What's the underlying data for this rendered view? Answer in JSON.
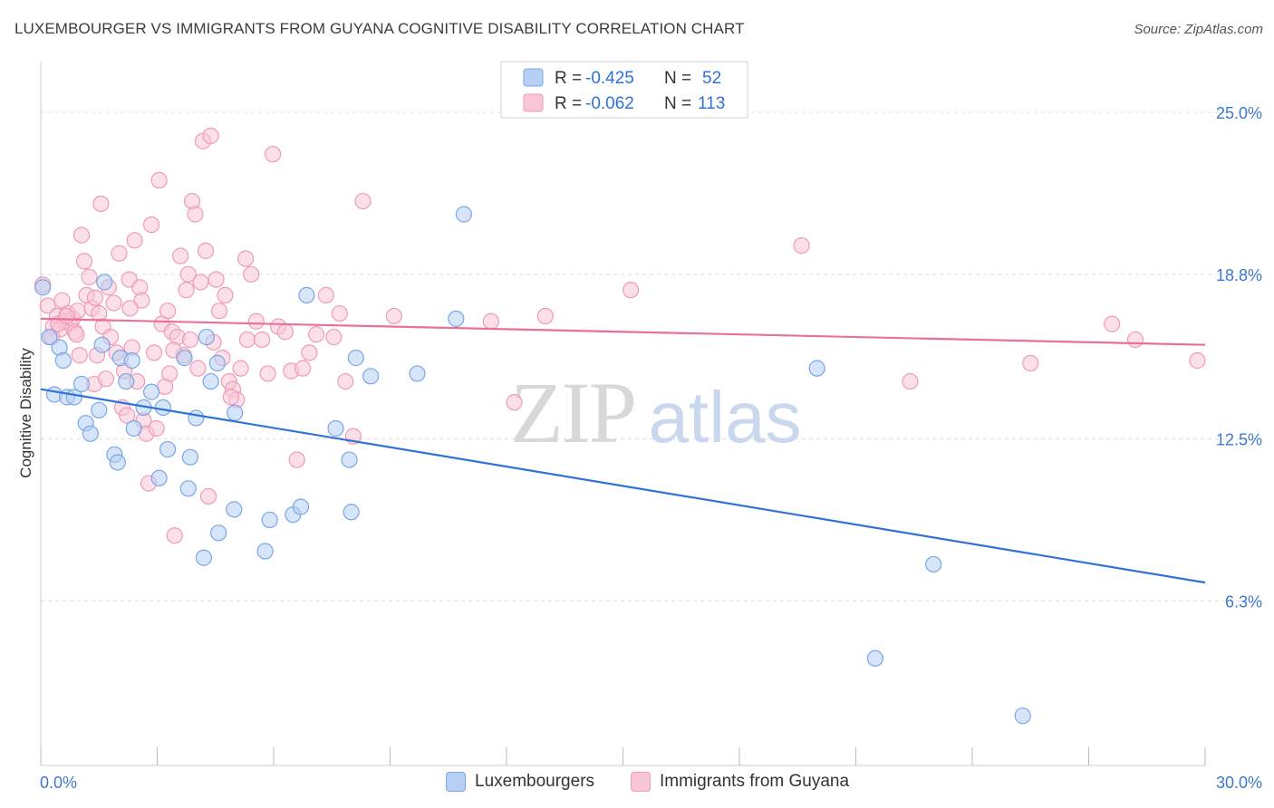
{
  "title": "LUXEMBOURGER VS IMMIGRANTS FROM GUYANA COGNITIVE DISABILITY CORRELATION CHART",
  "source": "Source: ZipAtlas.com",
  "watermark": {
    "zip": "ZIP",
    "atlas": "atlas"
  },
  "colors": {
    "blue": "#2f72d6",
    "blue_fill": "#b7cff4",
    "blue_stroke": "#7aa6e6",
    "pink": "#e8709a",
    "pink_fill": "#f9c6d7",
    "pink_stroke": "#ef9ab8",
    "axis_text": "#3d79d0",
    "grid": "#dddddd"
  },
  "legend_top": [
    {
      "r_label": "R =",
      "r_value": "-0.425",
      "n_label": "N =",
      "n_value": "52"
    },
    {
      "r_label": "R =",
      "r_value": "-0.062",
      "n_label": "N =",
      "n_value": "113"
    }
  ],
  "legend_bottom": [
    "Luxembourgers",
    "Immigrants from Guyana"
  ],
  "chart_data": {
    "type": "scatter",
    "title": "LUXEMBOURGER VS IMMIGRANTS FROM GUYANA COGNITIVE DISABILITY CORRELATION CHART",
    "xlabel": "",
    "ylabel": "Cognitive Disability",
    "xlim": [
      0,
      30
    ],
    "ylim": [
      0,
      26.7
    ],
    "x_tick_labels": [
      "0.0%",
      "30.0%"
    ],
    "y_ticks": [
      6.3,
      12.5,
      18.8,
      25.0
    ],
    "y_tick_labels": [
      "6.3%",
      "12.5%",
      "18.8%",
      "25.0%"
    ],
    "grid": true,
    "legend_position": "top-center",
    "series": [
      {
        "name": "Luxembourgers",
        "r": -0.425,
        "n": 52,
        "trend": {
          "x": [
            0,
            30
          ],
          "y": [
            14.4,
            7.0
          ]
        },
        "points": [
          [
            0.05,
            18.3
          ],
          [
            0.22,
            16.4
          ],
          [
            0.35,
            14.2
          ],
          [
            0.48,
            16.0
          ],
          [
            0.58,
            15.5
          ],
          [
            0.68,
            14.1
          ],
          [
            0.86,
            14.1
          ],
          [
            1.05,
            14.6
          ],
          [
            1.16,
            13.1
          ],
          [
            1.28,
            12.7
          ],
          [
            1.5,
            13.6
          ],
          [
            1.58,
            16.1
          ],
          [
            1.64,
            18.5
          ],
          [
            1.9,
            11.9
          ],
          [
            1.98,
            11.6
          ],
          [
            2.05,
            15.6
          ],
          [
            2.2,
            14.7
          ],
          [
            2.35,
            15.5
          ],
          [
            2.4,
            12.9
          ],
          [
            2.65,
            13.7
          ],
          [
            2.85,
            14.3
          ],
          [
            3.05,
            11.0
          ],
          [
            3.15,
            13.7
          ],
          [
            3.27,
            12.1
          ],
          [
            3.7,
            15.6
          ],
          [
            3.8,
            10.6
          ],
          [
            3.85,
            11.8
          ],
          [
            4.0,
            13.3
          ],
          [
            4.2,
            7.95
          ],
          [
            4.27,
            16.4
          ],
          [
            4.38,
            14.7
          ],
          [
            4.55,
            15.4
          ],
          [
            4.58,
            8.9
          ],
          [
            4.98,
            9.8
          ],
          [
            5.0,
            13.5
          ],
          [
            5.78,
            8.2
          ],
          [
            5.9,
            9.4
          ],
          [
            6.5,
            9.6
          ],
          [
            6.7,
            9.9
          ],
          [
            6.85,
            18.0
          ],
          [
            7.6,
            12.9
          ],
          [
            7.95,
            11.7
          ],
          [
            8.0,
            9.7
          ],
          [
            8.12,
            15.6
          ],
          [
            8.5,
            14.9
          ],
          [
            9.7,
            15.0
          ],
          [
            10.7,
            17.1
          ],
          [
            10.9,
            21.1
          ],
          [
            20.0,
            15.2
          ],
          [
            21.5,
            4.1
          ],
          [
            23.0,
            7.7
          ],
          [
            25.3,
            1.9
          ]
        ]
      },
      {
        "name": "Immigrants from Guyana",
        "r": -0.062,
        "n": 113,
        "trend": {
          "x": [
            0,
            30
          ],
          "y": [
            17.1,
            16.1
          ]
        },
        "points": [
          [
            0.05,
            18.4
          ],
          [
            0.18,
            17.6
          ],
          [
            0.32,
            16.8
          ],
          [
            0.42,
            17.2
          ],
          [
            0.5,
            16.7
          ],
          [
            0.55,
            17.8
          ],
          [
            0.62,
            17.0
          ],
          [
            0.7,
            17.3
          ],
          [
            0.75,
            16.9
          ],
          [
            0.82,
            17.1
          ],
          [
            0.88,
            16.6
          ],
          [
            0.95,
            17.4
          ],
          [
            1.0,
            15.7
          ],
          [
            1.05,
            20.3
          ],
          [
            1.12,
            19.3
          ],
          [
            1.18,
            18.0
          ],
          [
            1.25,
            18.7
          ],
          [
            1.32,
            17.5
          ],
          [
            1.38,
            14.6
          ],
          [
            1.45,
            15.7
          ],
          [
            1.5,
            17.3
          ],
          [
            1.55,
            21.5
          ],
          [
            1.6,
            16.8
          ],
          [
            1.68,
            14.8
          ],
          [
            1.75,
            18.3
          ],
          [
            1.8,
            16.4
          ],
          [
            1.88,
            17.7
          ],
          [
            1.95,
            15.8
          ],
          [
            2.02,
            19.6
          ],
          [
            2.1,
            13.7
          ],
          [
            2.15,
            15.1
          ],
          [
            2.22,
            13.4
          ],
          [
            2.28,
            18.6
          ],
          [
            2.35,
            16.0
          ],
          [
            2.42,
            20.1
          ],
          [
            2.48,
            14.7
          ],
          [
            2.55,
            18.3
          ],
          [
            2.6,
            17.8
          ],
          [
            2.65,
            13.2
          ],
          [
            2.72,
            12.7
          ],
          [
            2.78,
            10.8
          ],
          [
            2.85,
            20.7
          ],
          [
            2.92,
            15.8
          ],
          [
            2.98,
            12.9
          ],
          [
            3.05,
            22.4
          ],
          [
            3.12,
            16.9
          ],
          [
            3.2,
            14.5
          ],
          [
            3.27,
            17.4
          ],
          [
            3.32,
            15.0
          ],
          [
            3.38,
            16.6
          ],
          [
            3.45,
            8.8
          ],
          [
            3.52,
            16.4
          ],
          [
            3.6,
            19.5
          ],
          [
            3.68,
            15.7
          ],
          [
            3.75,
            18.2
          ],
          [
            3.8,
            18.8
          ],
          [
            3.85,
            16.3
          ],
          [
            3.9,
            21.6
          ],
          [
            3.98,
            21.1
          ],
          [
            4.05,
            15.2
          ],
          [
            4.12,
            18.5
          ],
          [
            4.18,
            23.9
          ],
          [
            4.25,
            19.7
          ],
          [
            4.32,
            10.3
          ],
          [
            4.38,
            24.1
          ],
          [
            4.45,
            16.2
          ],
          [
            4.52,
            18.6
          ],
          [
            4.6,
            17.4
          ],
          [
            4.68,
            15.6
          ],
          [
            4.75,
            18.0
          ],
          [
            4.85,
            14.7
          ],
          [
            4.95,
            14.4
          ],
          [
            5.05,
            14.0
          ],
          [
            5.15,
            15.2
          ],
          [
            5.28,
            19.4
          ],
          [
            5.32,
            16.3
          ],
          [
            5.42,
            18.8
          ],
          [
            5.55,
            17.0
          ],
          [
            5.7,
            16.3
          ],
          [
            5.85,
            15.0
          ],
          [
            5.98,
            23.4
          ],
          [
            6.12,
            16.8
          ],
          [
            6.3,
            16.6
          ],
          [
            6.45,
            15.1
          ],
          [
            6.6,
            11.7
          ],
          [
            6.75,
            15.2
          ],
          [
            6.92,
            15.8
          ],
          [
            7.1,
            16.5
          ],
          [
            7.35,
            18.0
          ],
          [
            7.55,
            16.4
          ],
          [
            7.7,
            17.3
          ],
          [
            7.85,
            14.7
          ],
          [
            8.05,
            12.6
          ],
          [
            8.3,
            21.6
          ],
          [
            9.1,
            17.2
          ],
          [
            11.6,
            17.0
          ],
          [
            12.2,
            13.9
          ],
          [
            13.0,
            17.2
          ],
          [
            15.2,
            18.2
          ],
          [
            19.6,
            19.9
          ],
          [
            22.4,
            14.7
          ],
          [
            25.5,
            15.4
          ],
          [
            27.6,
            16.9
          ],
          [
            28.2,
            16.3
          ],
          [
            29.8,
            15.5
          ],
          [
            0.28,
            16.4
          ],
          [
            0.45,
            16.9
          ],
          [
            0.66,
            17.2
          ],
          [
            0.92,
            16.5
          ],
          [
            1.4,
            17.9
          ],
          [
            2.3,
            17.5
          ],
          [
            3.42,
            15.9
          ],
          [
            4.9,
            14.1
          ]
        ]
      }
    ]
  }
}
